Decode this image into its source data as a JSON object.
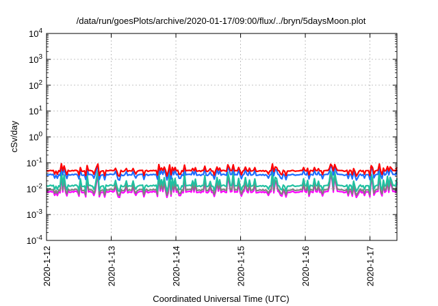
{
  "chart_data": {
    "type": "line",
    "title": "/data/run/goesPlots/archive/2020-01-17/09:00/flux/../bryn/5daysMoon.plot",
    "xlabel": "Coordinated Universal Time (UTC)",
    "ylabel": "cSv/day",
    "yscale": "log",
    "ylim": [
      0.0001,
      10000
    ],
    "xlim": [
      "2020-01-12",
      "2020-01-17T10:00"
    ],
    "grid": true,
    "x_ticks": [
      "2020-1-12",
      "2020-1-13",
      "2020-1-14",
      "2020-1-15",
      "2020-1-16",
      "2020-1-17"
    ],
    "y_ticks": [
      {
        "value": 0.0001,
        "mant": "10",
        "exp": "-4"
      },
      {
        "value": 0.001,
        "mant": "10",
        "exp": "-3"
      },
      {
        "value": 0.01,
        "mant": "10",
        "exp": "-2"
      },
      {
        "value": 0.1,
        "mant": "10",
        "exp": "-1"
      },
      {
        "value": 1,
        "mant": "10",
        "exp": "0"
      },
      {
        "value": 10,
        "mant": "10",
        "exp": "1"
      },
      {
        "value": 100,
        "mant": "10",
        "exp": "2"
      },
      {
        "value": 1000,
        "mant": "10",
        "exp": "3"
      },
      {
        "value": 10000,
        "mant": "10",
        "exp": "4"
      }
    ],
    "series": [
      {
        "color": "#ff0000",
        "baseline": 0.05,
        "spike": 0.09
      },
      {
        "color": "#1e6cff",
        "baseline": 0.035,
        "spike": 0.08
      },
      {
        "color": "#20c0a0",
        "baseline": 0.013,
        "spike": 0.05
      },
      {
        "color": "#808080",
        "baseline": 0.009,
        "spike": 0.04
      },
      {
        "color": "#ff00ff",
        "baseline": 0.0075,
        "spike": 0.035
      }
    ]
  }
}
